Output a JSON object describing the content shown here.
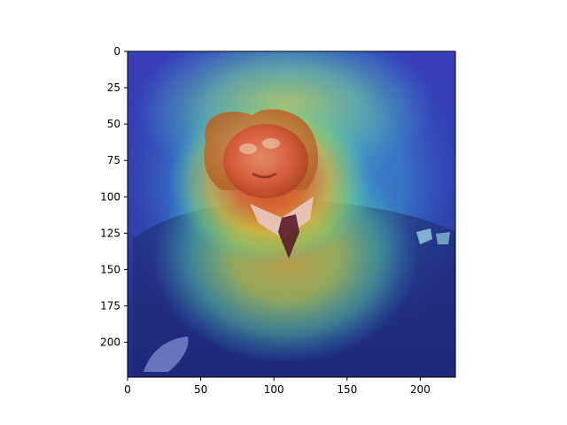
{
  "figure": {
    "background": "#ffffff",
    "image_description": "saliency heatmap overlay on portrait of a man in a suit and tie",
    "colormap": "jet",
    "x_ticks": [
      "0",
      "50",
      "100",
      "150",
      "200"
    ],
    "y_ticks": [
      "0",
      "25",
      "50",
      "75",
      "100",
      "125",
      "150",
      "175",
      "200"
    ],
    "x_range": [
      0,
      224
    ],
    "y_range": [
      0,
      224
    ],
    "x_tick_values": [
      0,
      50,
      100,
      150,
      200
    ],
    "y_tick_values": [
      0,
      25,
      50,
      75,
      100,
      125,
      150,
      175,
      200
    ]
  }
}
